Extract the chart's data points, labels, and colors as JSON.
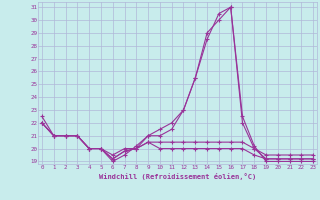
{
  "xlabel": "Windchill (Refroidissement éolien,°C)",
  "background_color": "#c8ecec",
  "grid_color": "#b0b8d8",
  "line_color": "#993399",
  "x_hours": [
    0,
    1,
    2,
    3,
    4,
    5,
    6,
    7,
    8,
    9,
    10,
    11,
    12,
    13,
    14,
    15,
    16,
    17,
    18,
    19,
    20,
    21,
    22,
    23
  ],
  "series": [
    [
      22.0,
      21.0,
      21.0,
      21.0,
      20.0,
      20.0,
      19.2,
      19.8,
      20.0,
      20.5,
      20.0,
      20.0,
      20.0,
      20.0,
      20.0,
      20.0,
      20.0,
      20.0,
      19.5,
      19.2,
      19.2,
      19.2,
      19.2,
      19.2
    ],
    [
      22.0,
      21.0,
      21.0,
      21.0,
      20.0,
      20.0,
      19.5,
      20.0,
      20.0,
      20.5,
      20.5,
      20.5,
      20.5,
      20.5,
      20.5,
      20.5,
      20.5,
      20.5,
      20.0,
      19.5,
      19.5,
      19.5,
      19.5,
      19.5
    ],
    [
      22.0,
      21.0,
      21.0,
      21.0,
      20.0,
      20.0,
      19.2,
      19.8,
      20.0,
      21.0,
      21.0,
      21.5,
      23.0,
      25.5,
      29.0,
      30.0,
      31.0,
      22.0,
      20.0,
      19.2,
      19.2,
      19.2,
      19.2,
      19.2
    ],
    [
      22.5,
      21.0,
      21.0,
      21.0,
      20.0,
      20.0,
      19.0,
      19.5,
      20.2,
      21.0,
      21.5,
      22.0,
      23.0,
      25.5,
      28.5,
      30.5,
      31.0,
      22.5,
      20.2,
      19.0,
      19.0,
      19.0,
      19.0,
      19.0
    ]
  ],
  "ylim_min": 19,
  "ylim_max": 31,
  "yticks": [
    19,
    20,
    21,
    22,
    23,
    24,
    25,
    26,
    27,
    28,
    29,
    30,
    31
  ],
  "xticks": [
    0,
    1,
    2,
    3,
    4,
    5,
    6,
    7,
    8,
    9,
    10,
    11,
    12,
    13,
    14,
    15,
    16,
    17,
    18,
    19,
    20,
    21,
    22,
    23
  ]
}
